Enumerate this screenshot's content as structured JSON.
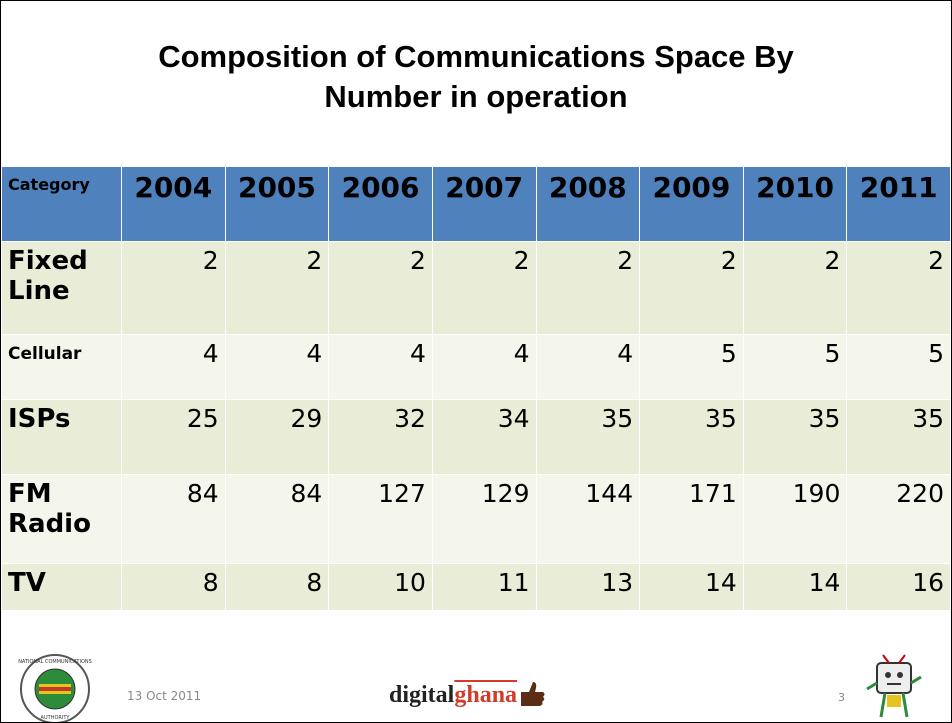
{
  "title": "Composition of Communications Space By Number in operation",
  "table": {
    "header": [
      "Category",
      "2004",
      "2005",
      "2006",
      "2007",
      "2008",
      "2009",
      "2010",
      "2011"
    ],
    "rows": [
      [
        "Fixed Line",
        2,
        2,
        2,
        2,
        2,
        2,
        2,
        2
      ],
      [
        "Cellular",
        4,
        4,
        4,
        4,
        4,
        5,
        5,
        5
      ],
      [
        "ISPs",
        25,
        29,
        32,
        34,
        35,
        35,
        35,
        35
      ],
      [
        "FM Radio",
        84,
        84,
        127,
        129,
        144,
        171,
        190,
        220
      ],
      [
        "TV",
        8,
        8,
        10,
        11,
        13,
        14,
        14,
        16
      ]
    ]
  },
  "footer": {
    "date": "13 Oct 2011",
    "logo_left": "digital",
    "logo_right": "ghana",
    "page": "3",
    "seal_top": "NATIONAL COMMUNICATIONS",
    "seal_bottom": "AUTHORITY"
  }
}
